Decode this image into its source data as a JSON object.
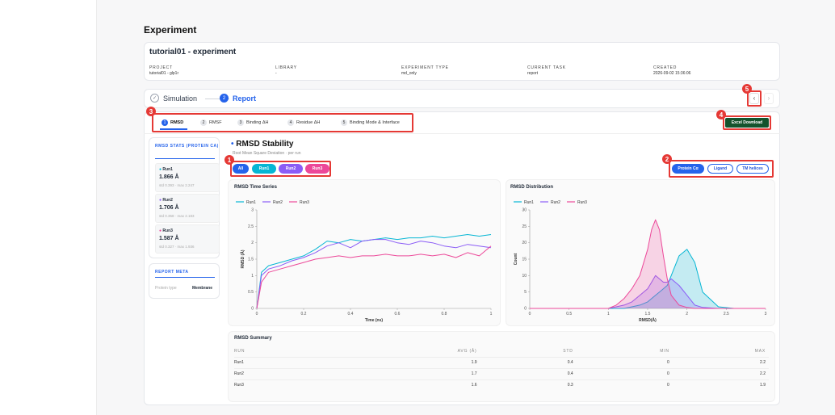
{
  "page": {
    "title": "Experiment"
  },
  "experiment": {
    "name": "tutorial01 - experiment",
    "fields": [
      {
        "label": "PROJECT",
        "value": "tutorial01 - glp1r"
      },
      {
        "label": "LIBRARY",
        "value": "-"
      },
      {
        "label": "EXPERIMENT TYPE",
        "value": "md_only"
      },
      {
        "label": "CURRENT TASK",
        "value": "report"
      },
      {
        "label": "CREATED",
        "value": "2026-09-02 15:36:06"
      }
    ]
  },
  "steps": [
    {
      "num": "✓",
      "label": "Simulation"
    },
    {
      "num": "2",
      "label": "Report"
    }
  ],
  "badges": [
    "1",
    "2",
    "3",
    "4",
    "5"
  ],
  "tabs": [
    {
      "num": "1",
      "label": "RMSD"
    },
    {
      "num": "2",
      "label": "RMSF"
    },
    {
      "num": "3",
      "label": "Binding ΔH"
    },
    {
      "num": "4",
      "label": "Residue ΔH"
    },
    {
      "num": "5",
      "label": "Binding Mode & Interface"
    }
  ],
  "buttons": {
    "excel": "Excel Download",
    "prev": "‹",
    "next": "›"
  },
  "sidebar": {
    "stats_title": "RMSD STATS (PROTEIN CA)",
    "runs": [
      {
        "name": "Run1",
        "value": "1.866 Å",
        "stats": "std 0.393 · max 2.247",
        "color": "#06b6d4"
      },
      {
        "name": "Run2",
        "value": "1.706 Å",
        "stats": "std 0.358 · max 2.183",
        "color": "#8b5cf6"
      },
      {
        "name": "Run3",
        "value": "1.587 Å",
        "stats": "std 0.327 · max 1.936",
        "color": "#ec4899"
      }
    ],
    "meta_title": "REPORT META",
    "meta": {
      "label": "Protein type",
      "value": "Membrane"
    }
  },
  "section": {
    "title": "RMSD Stability",
    "subtitle": "Root Mean Square Deviation · per run"
  },
  "run_filters": [
    {
      "label": "All",
      "color": "#2563eb"
    },
    {
      "label": "Run1",
      "color": "#06b6d4"
    },
    {
      "label": "Run2",
      "color": "#8b5cf6"
    },
    {
      "label": "Run3",
      "color": "#ec4899"
    }
  ],
  "selection_filters": [
    "Protein Cα",
    "Ligand",
    "TM helices"
  ],
  "chart_data": [
    {
      "type": "line",
      "title": "RMSD Time Series",
      "xlabel": "Time (ns)",
      "ylabel": "RMSD (Å)",
      "xlim": [
        0,
        1
      ],
      "ylim": [
        0,
        3
      ],
      "xticks": [
        "0",
        "0.2",
        "0.4",
        "0.6",
        "0.8",
        "1"
      ],
      "yticks": [
        "0",
        "0.5",
        "1",
        "1.5",
        "2",
        "2.5",
        "3"
      ],
      "x": [
        0,
        0.02,
        0.05,
        0.1,
        0.15,
        0.2,
        0.25,
        0.3,
        0.35,
        0.4,
        0.45,
        0.5,
        0.55,
        0.6,
        0.65,
        0.7,
        0.75,
        0.8,
        0.85,
        0.9,
        0.95,
        1.0
      ],
      "series": [
        {
          "name": "Run1",
          "color": "#06b6d4",
          "values": [
            0,
            1.1,
            1.3,
            1.4,
            1.5,
            1.6,
            1.8,
            2.05,
            2.0,
            2.1,
            2.05,
            2.1,
            2.15,
            2.1,
            2.15,
            2.15,
            2.2,
            2.15,
            2.2,
            2.25,
            2.2,
            2.25
          ]
        },
        {
          "name": "Run2",
          "color": "#8b5cf6",
          "values": [
            0,
            1.0,
            1.2,
            1.3,
            1.45,
            1.55,
            1.7,
            1.9,
            2.0,
            1.85,
            2.05,
            2.1,
            2.1,
            2.0,
            1.95,
            2.05,
            2.0,
            1.9,
            1.85,
            1.95,
            1.9,
            1.85
          ]
        },
        {
          "name": "Run3",
          "color": "#ec4899",
          "values": [
            0,
            0.8,
            1.1,
            1.2,
            1.3,
            1.4,
            1.5,
            1.55,
            1.6,
            1.55,
            1.6,
            1.6,
            1.65,
            1.6,
            1.6,
            1.65,
            1.6,
            1.65,
            1.55,
            1.7,
            1.6,
            1.9
          ]
        }
      ]
    },
    {
      "type": "area",
      "title": "RMSD Distribution",
      "xlabel": "RMSD(Å)",
      "ylabel": "Count",
      "xlim": [
        0,
        3
      ],
      "ylim": [
        0,
        30
      ],
      "xticks": [
        "0",
        "0.5",
        "1",
        "1.5",
        "2",
        "2.5",
        "3"
      ],
      "yticks": [
        "0",
        "5",
        "10",
        "15",
        "20",
        "25",
        "30"
      ],
      "x": [
        0,
        0.2,
        0.4,
        0.6,
        0.8,
        1.0,
        1.1,
        1.2,
        1.3,
        1.4,
        1.5,
        1.55,
        1.6,
        1.65,
        1.7,
        1.75,
        1.8,
        1.9,
        2.0,
        2.1,
        2.2,
        2.4,
        2.6,
        3.0
      ],
      "series": [
        {
          "name": "Run1",
          "color": "#06b6d4",
          "values": [
            0,
            0,
            0,
            0,
            0,
            0,
            0,
            0,
            0.5,
            1,
            2,
            3,
            4,
            5,
            6,
            7,
            10,
            16,
            18,
            14,
            5,
            0.5,
            0,
            0
          ]
        },
        {
          "name": "Run2",
          "color": "#8b5cf6",
          "values": [
            0,
            0,
            0,
            0,
            0,
            0,
            0.5,
            1,
            2,
            4,
            6,
            8,
            10,
            9,
            8,
            8,
            9,
            7,
            4,
            1,
            0.3,
            0,
            0,
            0
          ]
        },
        {
          "name": "Run3",
          "color": "#ec4899",
          "values": [
            0,
            0,
            0,
            0,
            0,
            0,
            1,
            3,
            6,
            10,
            18,
            24,
            27,
            24,
            16,
            9,
            4,
            1,
            0.3,
            0,
            0,
            0,
            0,
            0
          ]
        }
      ]
    }
  ],
  "summary": {
    "title": "RMSD Summary",
    "columns": [
      "RUN",
      "AVG (Å)",
      "STD",
      "MIN",
      "MAX"
    ],
    "rows": [
      [
        "Run1",
        "1.9",
        "0.4",
        "0",
        "2.2"
      ],
      [
        "Run2",
        "1.7",
        "0.4",
        "0",
        "2.2"
      ],
      [
        "Run3",
        "1.6",
        "0.3",
        "0",
        "1.9"
      ]
    ]
  }
}
